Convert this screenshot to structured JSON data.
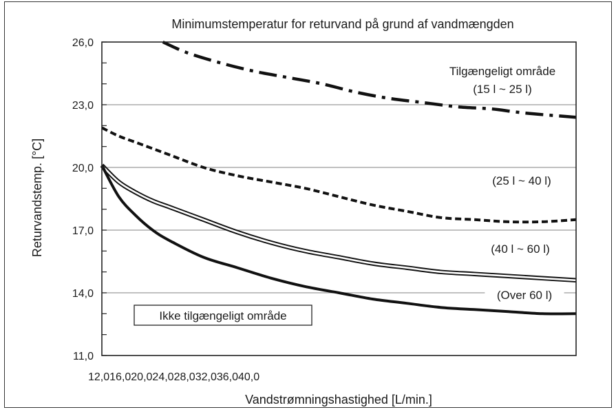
{
  "chart_data": {
    "type": "line",
    "title": "Minimumstemperatur for returvand på grund af vandmængden",
    "xlabel": "Vandstrømningshastighed [L/min.]",
    "ylabel": "Returvandstemp. [°C]",
    "xtick_label": "12,016,020,024,028,032,036,040,0",
    "yticks": [
      "11,0",
      "14,0",
      "17,0",
      "20,0",
      "23,0",
      "26,0"
    ],
    "ylim": [
      11,
      26
    ],
    "xlim": [
      12,
      40
    ],
    "grid": "horizontal",
    "region_labels": {
      "available": "Tilgængeligt område",
      "unavailable": "Ikke tilgængeligt område"
    },
    "series": [
      {
        "name": "(15 l ~ 25 l)",
        "style": "dashdot",
        "x": [
          15.6,
          17,
          19,
          21,
          23,
          25,
          27,
          29,
          31,
          33,
          35,
          37,
          40
        ],
        "y": [
          26.0,
          25.5,
          25.0,
          24.6,
          24.3,
          24.0,
          23.6,
          23.3,
          23.1,
          22.9,
          22.8,
          22.6,
          22.4
        ]
      },
      {
        "name": "(25 l ~ 40 l)",
        "style": "dashed",
        "x": [
          12,
          13,
          14,
          15,
          16,
          18,
          20,
          22,
          24,
          26,
          28,
          30,
          32,
          34,
          36,
          38,
          40
        ],
        "y": [
          21.9,
          21.5,
          21.2,
          20.9,
          20.6,
          20.0,
          19.6,
          19.3,
          19.0,
          18.6,
          18.2,
          17.9,
          17.6,
          17.5,
          17.4,
          17.4,
          17.5
        ]
      },
      {
        "name": "(40 l ~ 60 l)",
        "style": "double",
        "x": [
          12,
          13,
          14,
          15,
          16,
          18,
          20,
          22,
          24,
          26,
          28,
          30,
          32,
          34,
          36,
          38,
          40
        ],
        "y": [
          20.1,
          19.3,
          18.8,
          18.4,
          18.1,
          17.5,
          16.9,
          16.4,
          16.0,
          15.7,
          15.4,
          15.2,
          15.0,
          14.9,
          14.8,
          14.7,
          14.6
        ]
      },
      {
        "name": "(Over 60 l)",
        "style": "solid-bold",
        "x": [
          12,
          13,
          14,
          15,
          16,
          18,
          20,
          22,
          24,
          26,
          28,
          30,
          32,
          34,
          36,
          38,
          40
        ],
        "y": [
          20.1,
          18.6,
          17.7,
          17.0,
          16.5,
          15.7,
          15.2,
          14.7,
          14.3,
          14.0,
          13.7,
          13.5,
          13.3,
          13.2,
          13.1,
          13.0,
          13.0
        ]
      }
    ],
    "colors": {
      "line": "#111111",
      "grid": "#9a9a9a"
    }
  }
}
